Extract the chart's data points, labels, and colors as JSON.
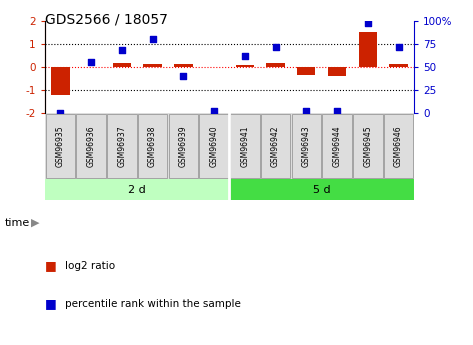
{
  "title": "GDS2566 / 18057",
  "samples": [
    "GSM96935",
    "GSM96936",
    "GSM96937",
    "GSM96938",
    "GSM96939",
    "GSM96940",
    "GSM96941",
    "GSM96942",
    "GSM96943",
    "GSM96944",
    "GSM96945",
    "GSM96946"
  ],
  "log2_ratio": [
    -1.2,
    0.0,
    0.15,
    0.12,
    0.12,
    0.0,
    0.1,
    0.18,
    -0.35,
    -0.38,
    1.5,
    0.12
  ],
  "percentile_rank": [
    0,
    55,
    68,
    80,
    40,
    2,
    62,
    72,
    2,
    2,
    98,
    72
  ],
  "groups": [
    {
      "label": "2 d",
      "start": 0,
      "end": 6,
      "color": "#BFFFC0"
    },
    {
      "label": "5 d",
      "start": 6,
      "end": 12,
      "color": "#44DD44"
    }
  ],
  "ylim_left": [
    -2,
    2
  ],
  "ylim_right": [
    0,
    100
  ],
  "yticks_left": [
    -2,
    -1,
    0,
    1,
    2
  ],
  "yticks_right": [
    0,
    25,
    50,
    75,
    100
  ],
  "yticklabels_right": [
    "0",
    "25",
    "50",
    "75",
    "100%"
  ],
  "bar_color": "#CC2200",
  "dot_color": "#0000CC",
  "hlines": [
    -1,
    0,
    1
  ],
  "hline_colors": [
    "black",
    "red",
    "black"
  ],
  "hline_styles": [
    "dotted",
    "dotted",
    "dotted"
  ],
  "bg_color": "#FFFFFF",
  "plot_bg": "#FFFFFF",
  "sample_bg": "#DDDDDD",
  "legend_bar_label": "log2 ratio",
  "legend_dot_label": "percentile rank within the sample",
  "time_label": "time",
  "bar_width": 0.6
}
